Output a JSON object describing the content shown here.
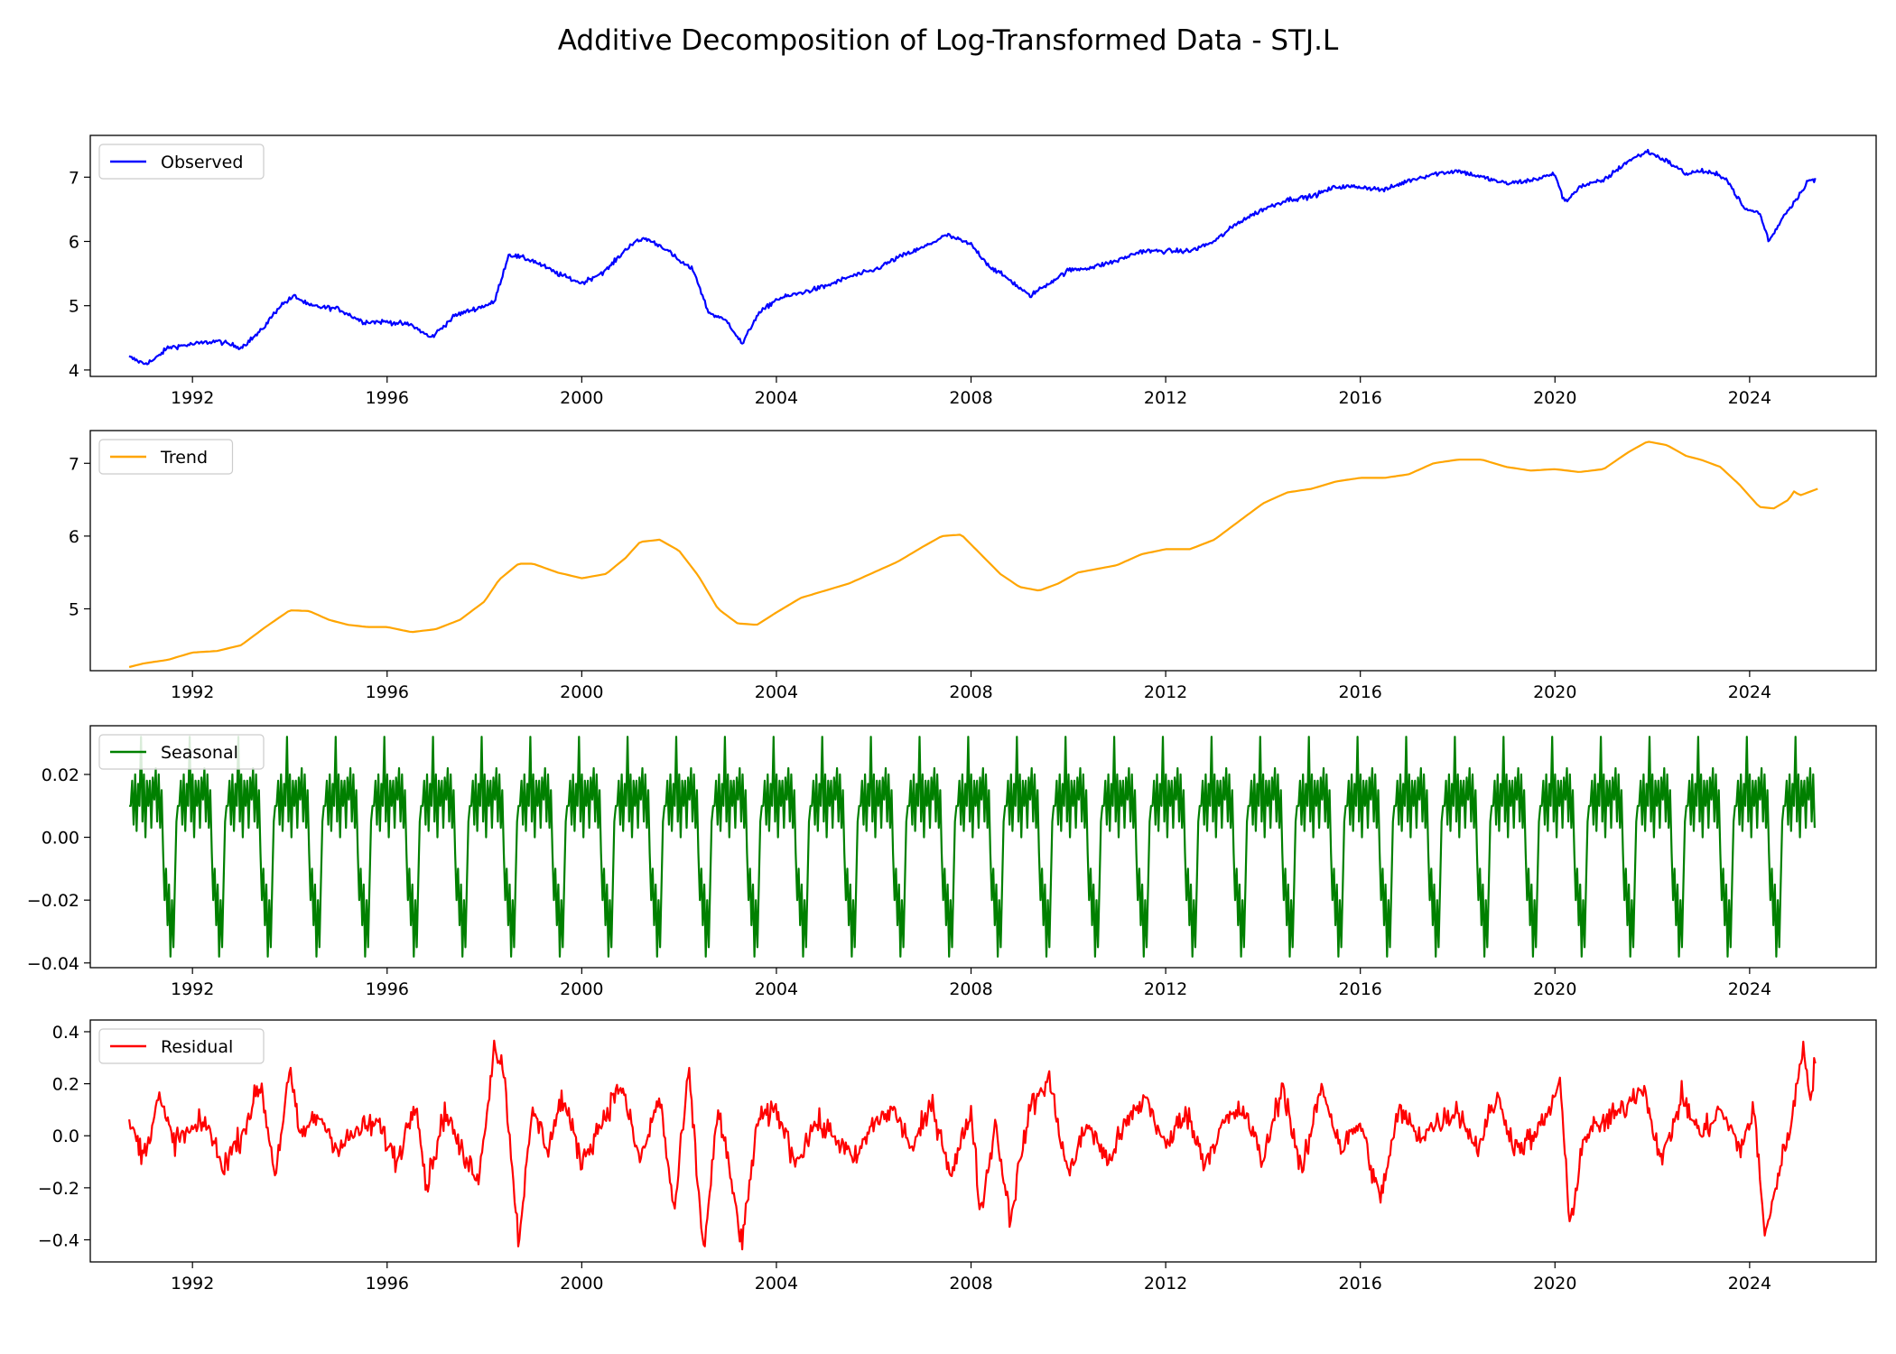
{
  "chart_data": {
    "type": "line",
    "title": "Additive Decomposition of Log-Transformed Data - STJ.L",
    "xlim": [
      1989.9,
      2026.6
    ],
    "x_ticks": [
      1992,
      1996,
      2000,
      2004,
      2008,
      2012,
      2016,
      2020,
      2024
    ],
    "grid": false,
    "legend_placement": "upper-left",
    "panels": [
      {
        "name": "Observed",
        "color": "#0000ff",
        "ylim": [
          3.9,
          7.65
        ],
        "y_ticks": [
          4,
          5,
          6,
          7
        ],
        "y_tick_labels": [
          "4",
          "5",
          "6",
          "7"
        ],
        "x": [
          1990.7,
          1991.0,
          1991.2,
          1991.5,
          1992.0,
          1992.5,
          1993.0,
          1993.4,
          1993.8,
          1994.1,
          1994.4,
          1995.0,
          1995.5,
          1996.0,
          1996.5,
          1996.9,
          1997.4,
          1997.8,
          1998.2,
          1998.5,
          1999.0,
          1999.5,
          2000.0,
          2000.5,
          2001.0,
          2001.3,
          2001.7,
          2002.0,
          2002.3,
          2002.6,
          2003.0,
          2003.3,
          2003.6,
          2004.0,
          2004.5,
          2005.0,
          2005.5,
          2006.0,
          2006.5,
          2007.0,
          2007.5,
          2008.0,
          2008.4,
          2008.8,
          2009.2,
          2009.6,
          2010.0,
          2010.5,
          2011.0,
          2011.5,
          2012.0,
          2012.5,
          2013.0,
          2013.5,
          2014.0,
          2014.5,
          2015.0,
          2015.5,
          2016.0,
          2016.5,
          2017.0,
          2017.5,
          2018.0,
          2018.5,
          2019.0,
          2019.5,
          2020.0,
          2020.2,
          2020.5,
          2021.0,
          2021.5,
          2021.9,
          2022.3,
          2022.7,
          2023.0,
          2023.5,
          2023.9,
          2024.2,
          2024.4,
          2024.7,
          2025.0,
          2025.2,
          2025.35
        ],
        "y": [
          4.2,
          4.1,
          4.15,
          4.35,
          4.4,
          4.45,
          4.35,
          4.6,
          5.0,
          5.15,
          5.0,
          4.95,
          4.75,
          4.75,
          4.7,
          4.5,
          4.85,
          4.95,
          5.05,
          5.8,
          5.7,
          5.5,
          5.35,
          5.55,
          5.95,
          6.05,
          5.9,
          5.7,
          5.55,
          4.9,
          4.75,
          4.4,
          4.85,
          5.1,
          5.2,
          5.3,
          5.45,
          5.55,
          5.75,
          5.9,
          6.1,
          5.95,
          5.6,
          5.4,
          5.15,
          5.35,
          5.55,
          5.6,
          5.7,
          5.85,
          5.85,
          5.85,
          6.0,
          6.3,
          6.5,
          6.65,
          6.7,
          6.85,
          6.85,
          6.8,
          6.95,
          7.05,
          7.1,
          7.0,
          6.9,
          6.95,
          7.05,
          6.6,
          6.85,
          6.95,
          7.25,
          7.4,
          7.25,
          7.05,
          7.1,
          7.0,
          6.5,
          6.45,
          6.0,
          6.4,
          6.7,
          6.95,
          6.95
        ]
      },
      {
        "name": "Trend",
        "color": "#ffa500",
        "ylim": [
          4.15,
          7.45
        ],
        "y_ticks": [
          5,
          6,
          7
        ],
        "y_tick_labels": [
          "5",
          "6",
          "7"
        ],
        "x": [
          1990.7,
          1991.0,
          1991.5,
          1992.0,
          1992.5,
          1993.0,
          1993.5,
          1994.0,
          1994.4,
          1994.8,
          1995.2,
          1995.6,
          1996.0,
          1996.5,
          1997.0,
          1997.5,
          1998.0,
          1998.3,
          1998.7,
          1999.0,
          1999.5,
          2000.0,
          2000.5,
          2000.9,
          2001.2,
          2001.6,
          2002.0,
          2002.4,
          2002.8,
          2003.2,
          2003.6,
          2004.0,
          2004.5,
          2005.0,
          2005.5,
          2006.0,
          2006.5,
          2007.0,
          2007.4,
          2007.8,
          2008.2,
          2008.6,
          2009.0,
          2009.4,
          2009.8,
          2010.2,
          2010.6,
          2011.0,
          2011.5,
          2012.0,
          2012.5,
          2013.0,
          2013.5,
          2014.0,
          2014.5,
          2015.0,
          2015.5,
          2016.0,
          2016.5,
          2017.0,
          2017.5,
          2018.0,
          2018.5,
          2019.0,
          2019.5,
          2020.0,
          2020.5,
          2021.0,
          2021.5,
          2021.9,
          2022.3,
          2022.7,
          2023.0,
          2023.4,
          2023.8,
          2024.2,
          2024.5,
          2024.8,
          2024.95,
          2025.0,
          2025.4
        ],
        "y": [
          4.2,
          4.25,
          4.3,
          4.4,
          4.42,
          4.5,
          4.75,
          4.98,
          4.97,
          4.85,
          4.78,
          4.75,
          4.75,
          4.68,
          4.72,
          4.85,
          5.1,
          5.4,
          5.62,
          5.62,
          5.5,
          5.42,
          5.48,
          5.7,
          5.92,
          5.95,
          5.8,
          5.45,
          5.0,
          4.8,
          4.78,
          4.95,
          5.15,
          5.25,
          5.35,
          5.5,
          5.65,
          5.85,
          6.0,
          6.02,
          5.75,
          5.48,
          5.3,
          5.25,
          5.35,
          5.5,
          5.55,
          5.6,
          5.75,
          5.82,
          5.82,
          5.95,
          6.2,
          6.45,
          6.6,
          6.65,
          6.75,
          6.8,
          6.8,
          6.85,
          7.0,
          7.05,
          7.05,
          6.95,
          6.9,
          6.92,
          6.88,
          6.92,
          7.15,
          7.3,
          7.25,
          7.1,
          7.05,
          6.95,
          6.7,
          6.4,
          6.38,
          6.5,
          6.65,
          6.55,
          6.65
        ]
      },
      {
        "name": "Seasonal",
        "color": "#008000",
        "ylim": [
          -0.0415,
          0.0355
        ],
        "y_ticks": [
          -0.04,
          -0.02,
          0.0,
          0.02
        ],
        "y_tick_labels": [
          "−0.04",
          "−0.02",
          "0.00",
          "0.02"
        ],
        "period_years": 1.0,
        "phase_start": 1990.7,
        "cycle_shape": [
          0.01,
          0.018,
          0.004,
          0.02,
          0.002,
          0.017,
          0.01,
          0.032,
          0.005,
          0.02,
          0.0,
          0.018,
          0.01,
          0.018,
          0.003,
          0.019,
          0.012,
          0.022,
          0.005,
          0.02,
          0.003,
          0.015,
          -0.005,
          -0.02,
          -0.01,
          -0.028,
          -0.015,
          -0.038,
          -0.02,
          -0.035,
          -0.015,
          0.005,
          0.01
        ],
        "x_range": [
          1990.7,
          2025.35
        ]
      },
      {
        "name": "Residual",
        "color": "#ff0000",
        "ylim": [
          -0.485,
          0.445
        ],
        "y_ticks": [
          -0.4,
          -0.2,
          0.0,
          0.2,
          0.4
        ],
        "y_tick_labels": [
          "−0.4",
          "−0.2",
          "0.0",
          "0.2",
          "0.4"
        ],
        "x": [
          1990.7,
          1991.0,
          1991.3,
          1991.6,
          1992.0,
          1992.3,
          1992.6,
          1993.0,
          1993.4,
          1993.7,
          1994.0,
          1994.2,
          1994.6,
          1995.0,
          1995.4,
          1995.8,
          1996.2,
          1996.6,
          1996.8,
          1997.2,
          1997.6,
          1997.9,
          1998.2,
          1998.4,
          1998.7,
          1999.0,
          1999.3,
          1999.6,
          2000.0,
          2000.4,
          2000.8,
          2001.2,
          2001.6,
          2001.9,
          2002.2,
          2002.5,
          2002.8,
          2003.0,
          2003.3,
          2003.6,
          2004.0,
          2004.4,
          2004.8,
          2005.2,
          2005.6,
          2006.0,
          2006.4,
          2006.8,
          2007.2,
          2007.6,
          2008.0,
          2008.2,
          2008.5,
          2008.8,
          2009.2,
          2009.6,
          2010.0,
          2010.4,
          2010.8,
          2011.2,
          2011.6,
          2012.0,
          2012.4,
          2012.8,
          2013.2,
          2013.6,
          2014.0,
          2014.4,
          2014.8,
          2015.2,
          2015.6,
          2016.0,
          2016.4,
          2016.8,
          2017.2,
          2017.6,
          2018.0,
          2018.4,
          2018.8,
          2019.2,
          2019.6,
          2019.9,
          2020.1,
          2020.3,
          2020.6,
          2021.0,
          2021.4,
          2021.8,
          2022.2,
          2022.6,
          2023.0,
          2023.4,
          2023.8,
          2024.1,
          2024.3,
          2024.6,
          2024.9,
          2025.1,
          2025.25,
          2025.35
        ],
        "y": [
          0.05,
          -0.08,
          0.15,
          -0.02,
          0.02,
          0.05,
          -0.12,
          0.0,
          0.2,
          -0.15,
          0.25,
          0.0,
          0.08,
          -0.05,
          0.02,
          0.05,
          -0.1,
          0.15,
          -0.2,
          0.1,
          -0.1,
          -0.15,
          0.35,
          0.25,
          -0.4,
          0.1,
          -0.05,
          0.15,
          -0.1,
          0.05,
          0.2,
          -0.1,
          0.15,
          -0.3,
          0.25,
          -0.45,
          0.1,
          -0.1,
          -0.42,
          0.05,
          0.1,
          -0.1,
          0.05,
          0.0,
          -0.1,
          0.05,
          0.1,
          -0.05,
          0.12,
          -0.15,
          0.1,
          -0.3,
          0.05,
          -0.32,
          0.1,
          0.22,
          -0.15,
          0.05,
          -0.1,
          0.05,
          0.15,
          -0.05,
          0.1,
          -0.1,
          0.05,
          0.1,
          -0.1,
          0.2,
          -0.15,
          0.2,
          -0.05,
          0.05,
          -0.25,
          0.1,
          0.0,
          0.05,
          0.1,
          -0.05,
          0.15,
          -0.05,
          0.0,
          0.1,
          0.22,
          -0.35,
          0.0,
          0.05,
          0.1,
          0.2,
          -0.1,
          0.15,
          0.0,
          0.1,
          -0.05,
          0.1,
          -0.38,
          -0.15,
          0.1,
          0.35,
          0.15,
          0.3
        ]
      }
    ]
  }
}
